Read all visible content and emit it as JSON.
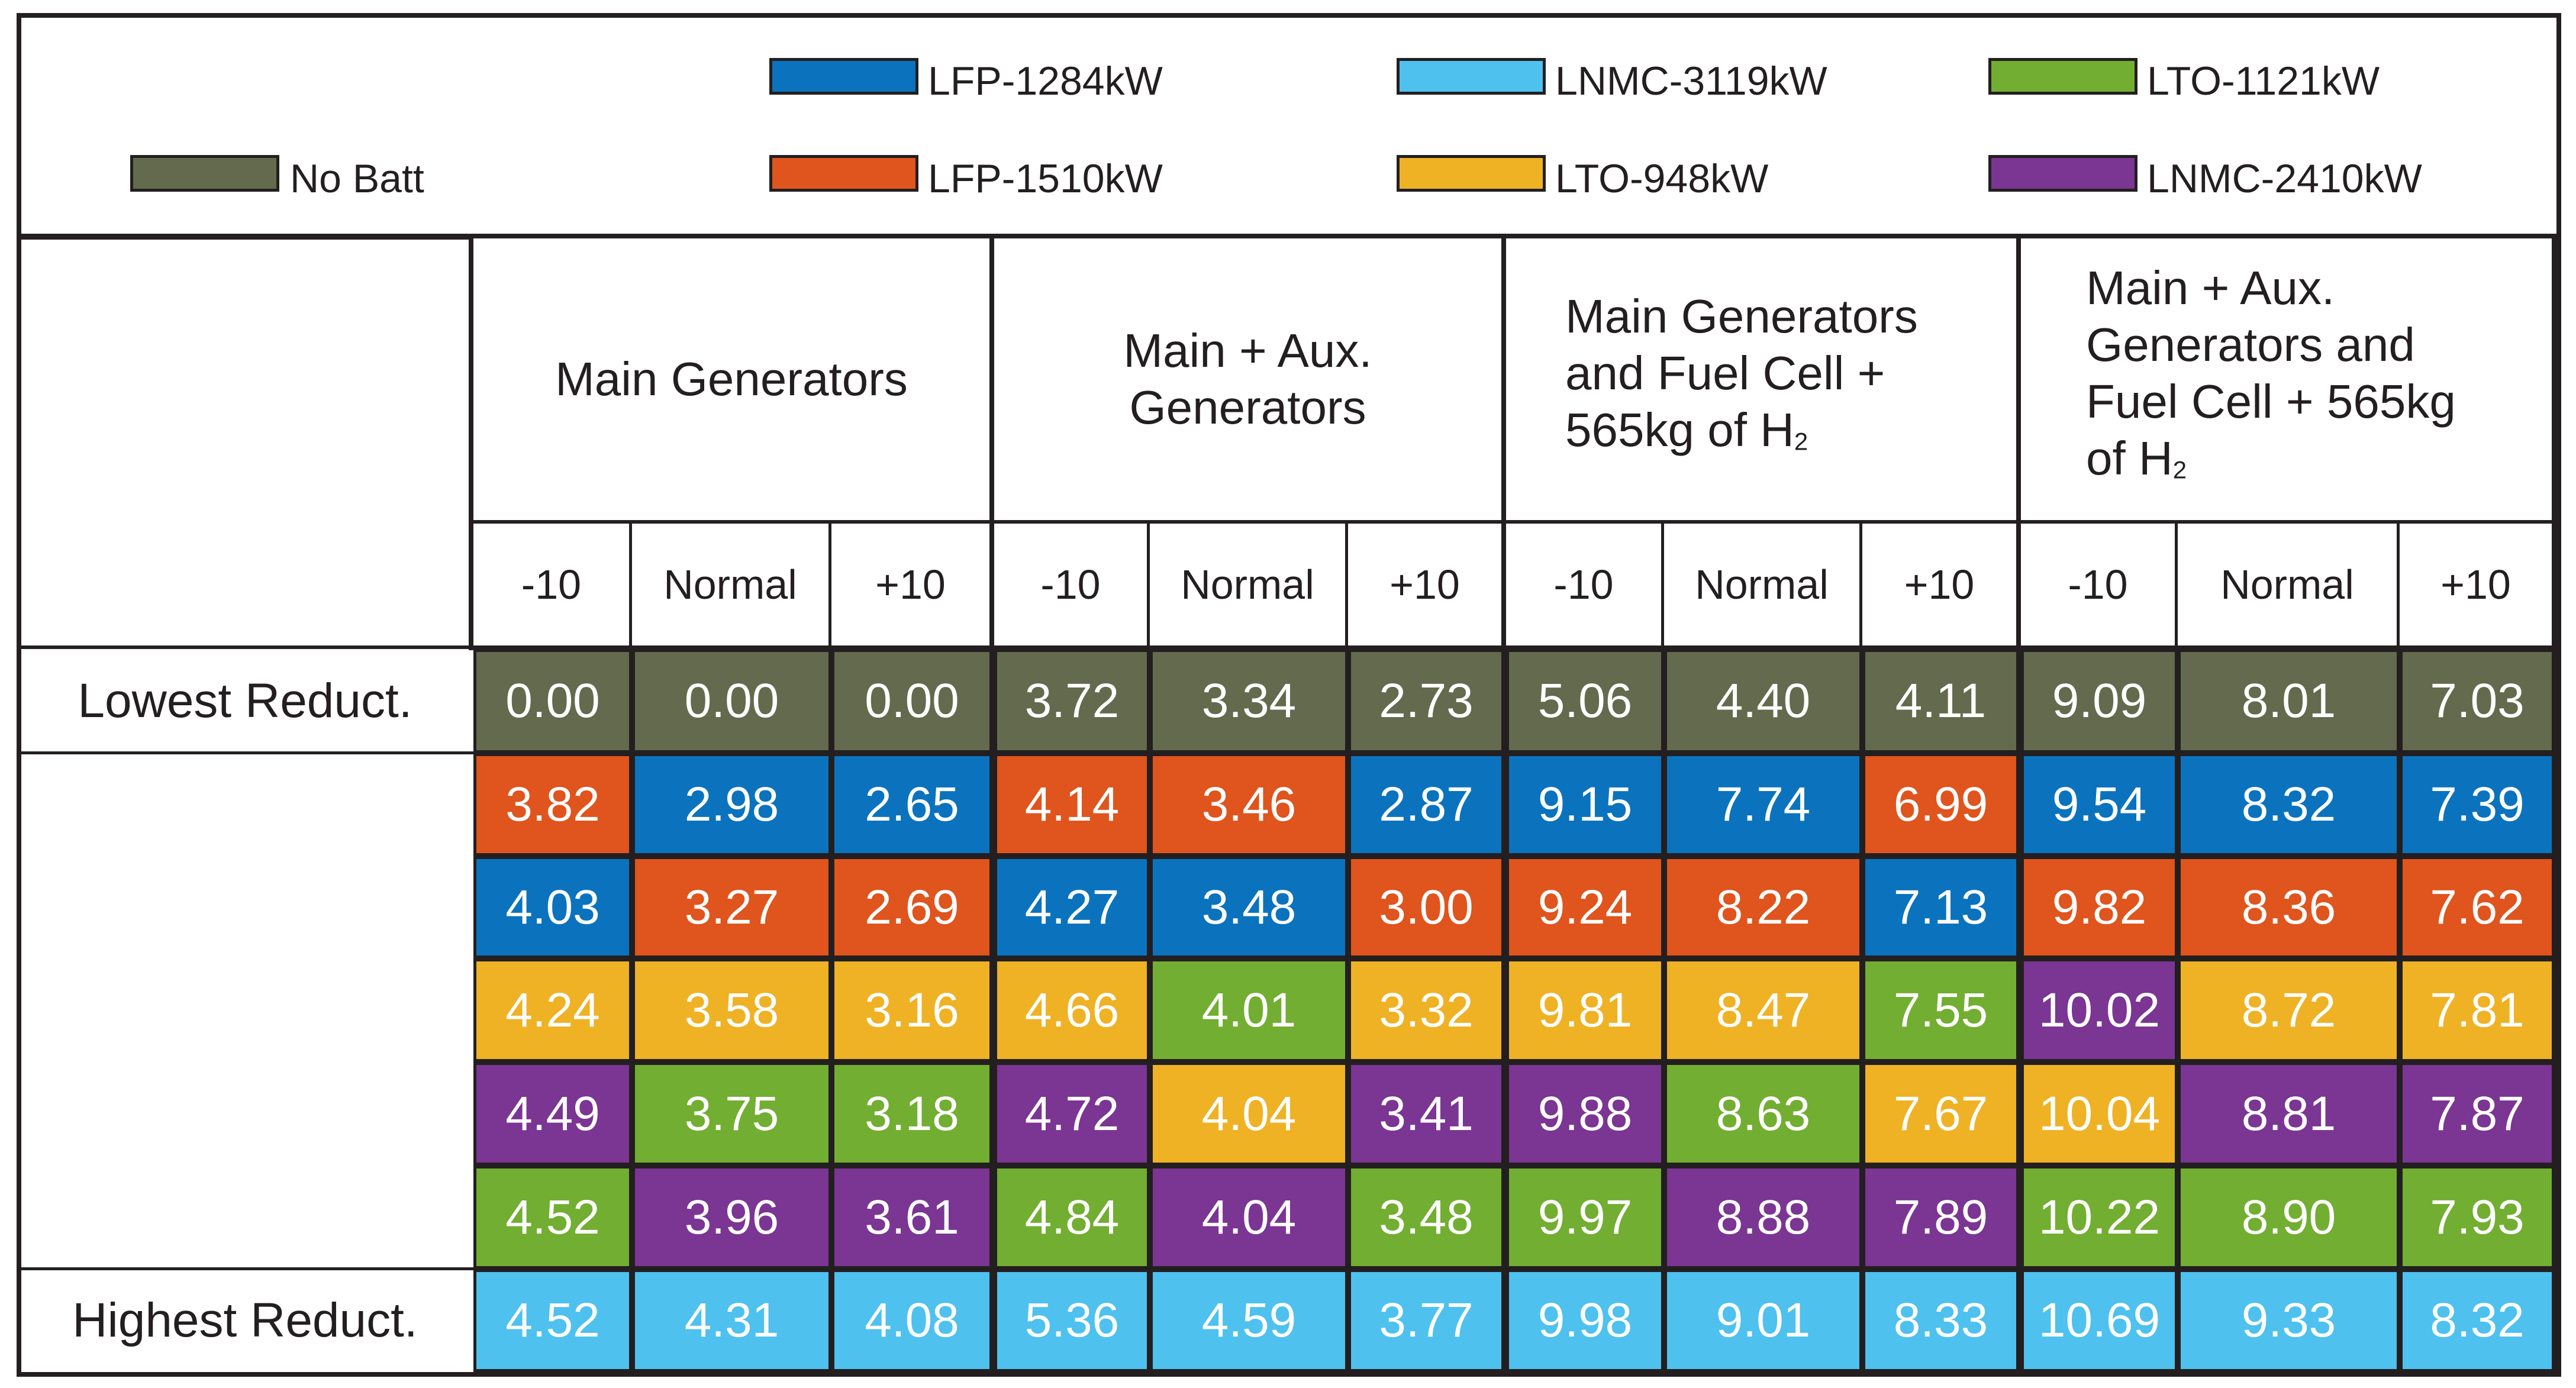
{
  "legend": [
    {
      "label": "No Batt",
      "color": "#646a4d"
    },
    {
      "label": "LFP-1284kW",
      "color": "#0b73bd"
    },
    {
      "label": "LFP-1510kW",
      "color": "#e0541d"
    },
    {
      "label": "LNMC-3119kW",
      "color": "#4ec1ef"
    },
    {
      "label": "LTO-948kW",
      "color": "#efb225"
    },
    {
      "label": "LTO-1121kW",
      "color": "#72ae31"
    },
    {
      "label": "LNMC-2410kW",
      "color": "#7b3593"
    }
  ],
  "chart_data": {
    "type": "table",
    "groups": [
      {
        "label": "Main Generators",
        "lines": [
          "Main Generators"
        ]
      },
      {
        "label": "Main + Aux. Generators",
        "lines": [
          "Main + Aux.",
          "Generators"
        ]
      },
      {
        "label": "Main Generators and Fuel Cell + 565kg of H2",
        "lines": [
          "Main Generators",
          "and Fuel Cell +",
          "565kg of H"
        ],
        "sub": "2"
      },
      {
        "label": "Main + Aux. Generators and Fuel Cell + 565kg of H2",
        "lines": [
          "Main + Aux.",
          "Generators and",
          "Fuel Cell + 565kg",
          "of H"
        ],
        "sub": "2"
      }
    ],
    "subcolumns": [
      "-10",
      "Normal",
      "+10"
    ],
    "row_labels": [
      "Lowest Reduct.",
      "",
      "",
      "",
      "",
      "",
      "Highest Reduct."
    ],
    "rows": [
      [
        {
          "v": "0.00",
          "b": "No Batt"
        },
        {
          "v": "0.00",
          "b": "No Batt"
        },
        {
          "v": "0.00",
          "b": "No Batt"
        },
        {
          "v": "3.72",
          "b": "No Batt"
        },
        {
          "v": "3.34",
          "b": "No Batt"
        },
        {
          "v": "2.73",
          "b": "No Batt"
        },
        {
          "v": "5.06",
          "b": "No Batt"
        },
        {
          "v": "4.40",
          "b": "No Batt"
        },
        {
          "v": "4.11",
          "b": "No Batt"
        },
        {
          "v": "9.09",
          "b": "No Batt"
        },
        {
          "v": "8.01",
          "b": "No Batt"
        },
        {
          "v": "7.03",
          "b": "No Batt"
        }
      ],
      [
        {
          "v": "3.82",
          "b": "LFP-1510kW"
        },
        {
          "v": "2.98",
          "b": "LFP-1284kW"
        },
        {
          "v": "2.65",
          "b": "LFP-1284kW"
        },
        {
          "v": "4.14",
          "b": "LFP-1510kW"
        },
        {
          "v": "3.46",
          "b": "LFP-1510kW"
        },
        {
          "v": "2.87",
          "b": "LFP-1284kW"
        },
        {
          "v": "9.15",
          "b": "LFP-1284kW"
        },
        {
          "v": "7.74",
          "b": "LFP-1284kW"
        },
        {
          "v": "6.99",
          "b": "LFP-1510kW"
        },
        {
          "v": "9.54",
          "b": "LFP-1284kW"
        },
        {
          "v": "8.32",
          "b": "LFP-1284kW"
        },
        {
          "v": "7.39",
          "b": "LFP-1284kW"
        }
      ],
      [
        {
          "v": "4.03",
          "b": "LFP-1284kW"
        },
        {
          "v": "3.27",
          "b": "LFP-1510kW"
        },
        {
          "v": "2.69",
          "b": "LFP-1510kW"
        },
        {
          "v": "4.27",
          "b": "LFP-1284kW"
        },
        {
          "v": "3.48",
          "b": "LFP-1284kW"
        },
        {
          "v": "3.00",
          "b": "LFP-1510kW"
        },
        {
          "v": "9.24",
          "b": "LFP-1510kW"
        },
        {
          "v": "8.22",
          "b": "LFP-1510kW"
        },
        {
          "v": "7.13",
          "b": "LFP-1284kW"
        },
        {
          "v": "9.82",
          "b": "LFP-1510kW"
        },
        {
          "v": "8.36",
          "b": "LFP-1510kW"
        },
        {
          "v": "7.62",
          "b": "LFP-1510kW"
        }
      ],
      [
        {
          "v": "4.24",
          "b": "LTO-948kW"
        },
        {
          "v": "3.58",
          "b": "LTO-948kW"
        },
        {
          "v": "3.16",
          "b": "LTO-948kW"
        },
        {
          "v": "4.66",
          "b": "LTO-948kW"
        },
        {
          "v": "4.01",
          "b": "LTO-1121kW"
        },
        {
          "v": "3.32",
          "b": "LTO-948kW"
        },
        {
          "v": "9.81",
          "b": "LTO-948kW"
        },
        {
          "v": "8.47",
          "b": "LTO-948kW"
        },
        {
          "v": "7.55",
          "b": "LTO-1121kW"
        },
        {
          "v": "10.02",
          "b": "LNMC-2410kW"
        },
        {
          "v": "8.72",
          "b": "LTO-948kW"
        },
        {
          "v": "7.81",
          "b": "LTO-948kW"
        }
      ],
      [
        {
          "v": "4.49",
          "b": "LNMC-2410kW"
        },
        {
          "v": "3.75",
          "b": "LTO-1121kW"
        },
        {
          "v": "3.18",
          "b": "LTO-1121kW"
        },
        {
          "v": "4.72",
          "b": "LNMC-2410kW"
        },
        {
          "v": "4.04",
          "b": "LTO-948kW"
        },
        {
          "v": "3.41",
          "b": "LNMC-2410kW"
        },
        {
          "v": "9.88",
          "b": "LNMC-2410kW"
        },
        {
          "v": "8.63",
          "b": "LTO-1121kW"
        },
        {
          "v": "7.67",
          "b": "LTO-948kW"
        },
        {
          "v": "10.04",
          "b": "LTO-948kW"
        },
        {
          "v": "8.81",
          "b": "LNMC-2410kW"
        },
        {
          "v": "7.87",
          "b": "LNMC-2410kW"
        }
      ],
      [
        {
          "v": "4.52",
          "b": "LTO-1121kW"
        },
        {
          "v": "3.96",
          "b": "LNMC-2410kW"
        },
        {
          "v": "3.61",
          "b": "LNMC-2410kW"
        },
        {
          "v": "4.84",
          "b": "LTO-1121kW"
        },
        {
          "v": "4.04",
          "b": "LNMC-2410kW"
        },
        {
          "v": "3.48",
          "b": "LTO-1121kW"
        },
        {
          "v": "9.97",
          "b": "LTO-1121kW"
        },
        {
          "v": "8.88",
          "b": "LNMC-2410kW"
        },
        {
          "v": "7.89",
          "b": "LNMC-2410kW"
        },
        {
          "v": "10.22",
          "b": "LTO-1121kW"
        },
        {
          "v": "8.90",
          "b": "LTO-1121kW"
        },
        {
          "v": "7.93",
          "b": "LTO-1121kW"
        }
      ],
      [
        {
          "v": "4.52",
          "b": "LNMC-3119kW"
        },
        {
          "v": "4.31",
          "b": "LNMC-3119kW"
        },
        {
          "v": "4.08",
          "b": "LNMC-3119kW"
        },
        {
          "v": "5.36",
          "b": "LNMC-3119kW"
        },
        {
          "v": "4.59",
          "b": "LNMC-3119kW"
        },
        {
          "v": "3.77",
          "b": "LNMC-3119kW"
        },
        {
          "v": "9.98",
          "b": "LNMC-3119kW"
        },
        {
          "v": "9.01",
          "b": "LNMC-3119kW"
        },
        {
          "v": "8.33",
          "b": "LNMC-3119kW"
        },
        {
          "v": "10.69",
          "b": "LNMC-3119kW"
        },
        {
          "v": "9.33",
          "b": "LNMC-3119kW"
        },
        {
          "v": "8.32",
          "b": "LNMC-3119kW"
        }
      ]
    ]
  }
}
